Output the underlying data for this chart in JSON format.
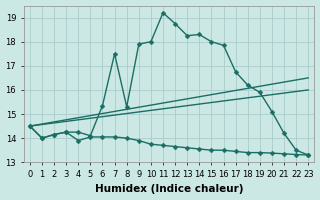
{
  "xlabel": "Humidex (Indice chaleur)",
  "background_color": "#cce8e4",
  "grid_color": "#aacccc",
  "xlim": [
    -0.5,
    23.5
  ],
  "ylim": [
    13.0,
    19.5
  ],
  "yticks": [
    13,
    14,
    15,
    16,
    17,
    18,
    19
  ],
  "xticks": [
    0,
    1,
    2,
    3,
    4,
    5,
    6,
    7,
    8,
    9,
    10,
    11,
    12,
    13,
    14,
    15,
    16,
    17,
    18,
    19,
    20,
    21,
    22,
    23
  ],
  "series": [
    {
      "x": [
        0,
        1,
        2,
        3,
        4,
        5,
        6,
        7,
        8,
        9,
        10,
        11,
        12,
        13,
        14,
        15,
        16,
        17,
        18,
        19,
        20,
        21,
        22,
        23
      ],
      "y": [
        14.5,
        14.0,
        14.15,
        14.25,
        14.25,
        14.1,
        15.35,
        17.5,
        15.3,
        17.9,
        18.0,
        19.2,
        18.75,
        18.25,
        18.3,
        18.0,
        17.85,
        16.75,
        16.2,
        15.9,
        15.1,
        14.2,
        13.5,
        13.3
      ],
      "color": "#1a6e64",
      "marker": "D",
      "markersize": 2.5,
      "linewidth": 1.0,
      "has_marker": true
    },
    {
      "x": [
        0,
        1,
        2,
        3,
        4,
        5,
        6,
        7,
        8,
        9,
        10,
        11,
        12,
        13,
        14,
        15,
        16,
        17,
        18,
        19,
        20,
        21,
        22,
        23
      ],
      "y": [
        14.5,
        14.0,
        14.15,
        14.25,
        13.9,
        14.05,
        14.05,
        14.05,
        14.0,
        13.9,
        13.75,
        13.7,
        13.65,
        13.6,
        13.55,
        13.5,
        13.5,
        13.45,
        13.4,
        13.4,
        13.38,
        13.35,
        13.32,
        13.3
      ],
      "color": "#1a6e64",
      "marker": "D",
      "markersize": 2.5,
      "linewidth": 1.0,
      "has_marker": true
    },
    {
      "x": [
        0,
        23
      ],
      "y": [
        14.5,
        16.5
      ],
      "color": "#1a6e64",
      "marker": null,
      "markersize": 0,
      "linewidth": 1.0,
      "has_marker": false
    },
    {
      "x": [
        0,
        23
      ],
      "y": [
        14.5,
        16.0
      ],
      "color": "#1a6e64",
      "marker": null,
      "markersize": 0,
      "linewidth": 1.0,
      "has_marker": false
    }
  ],
  "tick_fontsize": 6,
  "label_fontsize": 7.5
}
